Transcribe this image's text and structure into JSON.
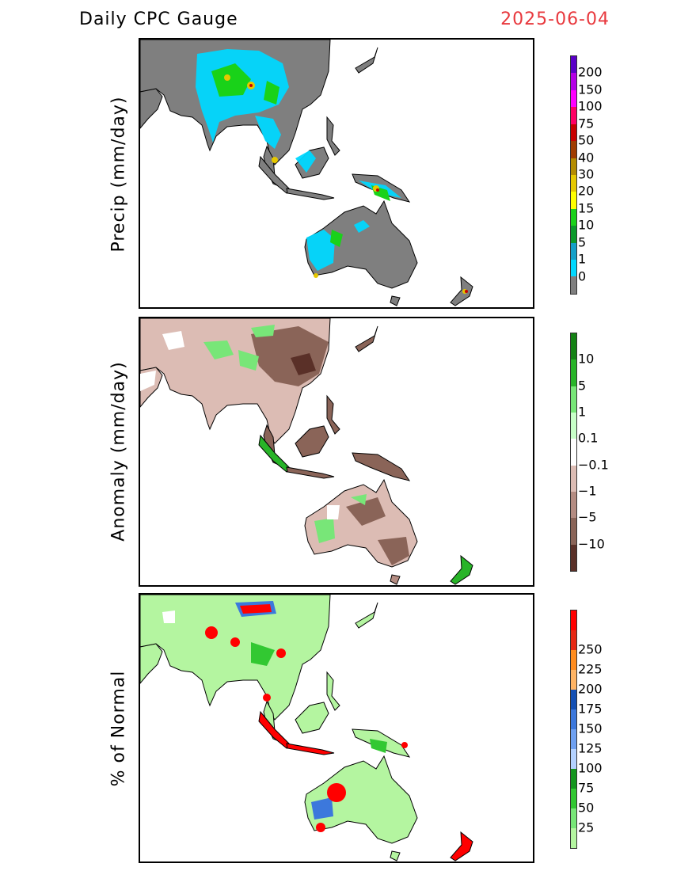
{
  "header": {
    "title": "Daily CPC Gauge",
    "date": "2025-06-04",
    "date_color": "#e8383d"
  },
  "panels": [
    {
      "ylabel": "Precip (mm/day)",
      "colorbar": {
        "colors": [
          "#7f7f7f",
          "#00d8ff",
          "#14a0c8",
          "#0a9a2a",
          "#19d219",
          "#ffff00",
          "#e6c800",
          "#b48c00",
          "#a03c00",
          "#c80000",
          "#ff0064",
          "#ff00ff",
          "#b400e6",
          "#5a00c8"
        ],
        "labels": [
          "0",
          "1",
          "5",
          "10",
          "15",
          "20",
          "30",
          "40",
          "50",
          "75",
          "100",
          "150",
          "200"
        ]
      }
    },
    {
      "ylabel": "Anomaly (mm/day)",
      "colorbar": {
        "colors": [
          "#5a3028",
          "#8a6458",
          "#b48c82",
          "#dcbcb4",
          "#ffffff",
          "#c8ffc8",
          "#78e678",
          "#28b428",
          "#148214"
        ],
        "labels": [
          "−10",
          "−5",
          "−1",
          "−0.1",
          "0.1",
          "1",
          "5",
          "10"
        ]
      }
    },
    {
      "ylabel": "% of Normal",
      "colorbar": {
        "colors": [
          "#b4f5a0",
          "#78e678",
          "#32c832",
          "#14961e",
          "#b4d2ff",
          "#6ea0f0",
          "#3c78dc",
          "#1450b4",
          "#ffb464",
          "#ff8c1e",
          "#e62814",
          "#ff0000"
        ],
        "labels": [
          "25",
          "50",
          "75",
          "100",
          "125",
          "150",
          "175",
          "200",
          "225",
          "250"
        ]
      }
    }
  ],
  "chart_data": [
    {
      "type": "heatmap",
      "title": "Daily CPC Gauge",
      "subtitle": "2025-06-04",
      "ylabel": "Precip (mm/day)",
      "legend_levels": [
        0,
        1,
        5,
        10,
        15,
        20,
        30,
        40,
        50,
        75,
        100,
        150,
        200
      ],
      "legend_placement": "right"
    },
    {
      "type": "heatmap",
      "ylabel": "Anomaly (mm/day)",
      "legend_levels": [
        -10,
        -5,
        -1,
        -0.1,
        0.1,
        1,
        5,
        10
      ],
      "legend_placement": "right"
    },
    {
      "type": "heatmap",
      "ylabel": "% of Normal",
      "legend_levels": [
        25,
        50,
        75,
        100,
        125,
        150,
        175,
        200,
        225,
        250
      ],
      "legend_placement": "right"
    }
  ]
}
